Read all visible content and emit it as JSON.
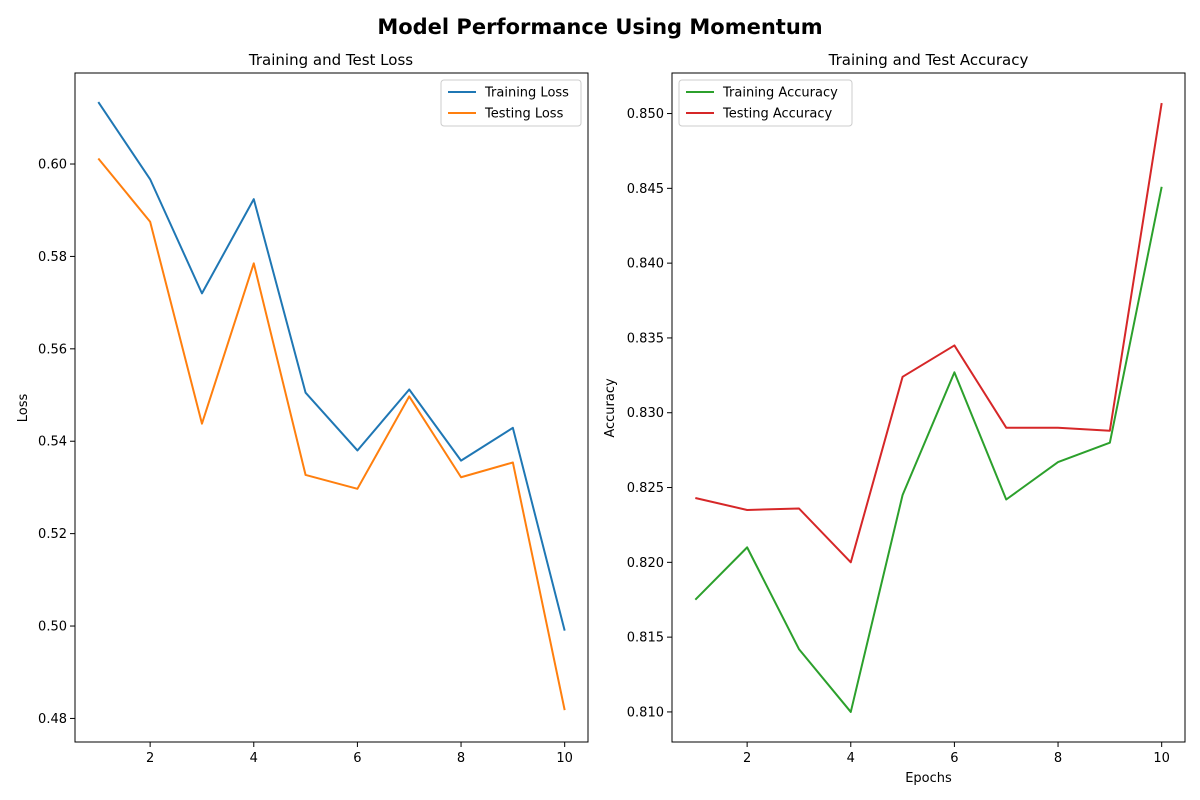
{
  "figure": {
    "title": "Model Performance Using Momentum"
  },
  "chart_data": [
    {
      "type": "line",
      "title": "Training and Test Loss",
      "xlabel": "",
      "ylabel": "Loss",
      "x": [
        1,
        2,
        3,
        4,
        5,
        6,
        7,
        8,
        9,
        10
      ],
      "xlim": [
        0.55,
        10.45
      ],
      "ylim": [
        0.4749,
        0.6197
      ],
      "xticks": [
        2,
        4,
        6,
        8,
        10
      ],
      "xtick_labels": [
        "2",
        "4",
        "6",
        "8",
        "10"
      ],
      "yticks": [
        0.48,
        0.5,
        0.52,
        0.54,
        0.56,
        0.58,
        0.6
      ],
      "ytick_labels": [
        "0.48",
        "0.50",
        "0.52",
        "0.54",
        "0.56",
        "0.58",
        "0.60"
      ],
      "grid": false,
      "legend_position": "top-right",
      "series": [
        {
          "name": "Training Loss",
          "color": "#1f77b4",
          "values": [
            0.6134,
            0.5967,
            0.572,
            0.5924,
            0.5505,
            0.538,
            0.5512,
            0.5358,
            0.5429,
            0.499
          ]
        },
        {
          "name": "Testing Loss",
          "color": "#ff7f0e",
          "values": [
            0.6012,
            0.5875,
            0.5438,
            0.5785,
            0.5327,
            0.5297,
            0.5497,
            0.5322,
            0.5354,
            0.4818
          ]
        }
      ]
    },
    {
      "type": "line",
      "title": "Training and Test Accuracy",
      "xlabel": "Epochs",
      "ylabel": "Accuracy",
      "x": [
        1,
        2,
        3,
        4,
        5,
        6,
        7,
        8,
        9,
        10
      ],
      "xlim": [
        0.55,
        10.45
      ],
      "ylim": [
        0.80799,
        0.85271
      ],
      "xticks": [
        2,
        4,
        6,
        8,
        10
      ],
      "xtick_labels": [
        "2",
        "4",
        "6",
        "8",
        "10"
      ],
      "yticks": [
        0.81,
        0.815,
        0.82,
        0.825,
        0.83,
        0.835,
        0.84,
        0.845,
        0.85
      ],
      "ytick_labels": [
        "0.810",
        "0.815",
        "0.820",
        "0.825",
        "0.830",
        "0.835",
        "0.840",
        "0.845",
        "0.850"
      ],
      "grid": false,
      "legend_position": "top-left",
      "series": [
        {
          "name": "Training Accuracy",
          "color": "#2ca02c",
          "values": [
            0.8175,
            0.821,
            0.8142,
            0.81,
            0.8245,
            0.8327,
            0.8242,
            0.8267,
            0.828,
            0.8451
          ]
        },
        {
          "name": "Testing Accuracy",
          "color": "#d62728",
          "values": [
            0.8243,
            0.8235,
            0.8236,
            0.82,
            0.8324,
            0.8345,
            0.829,
            0.829,
            0.8288,
            0.8507
          ]
        }
      ]
    }
  ]
}
